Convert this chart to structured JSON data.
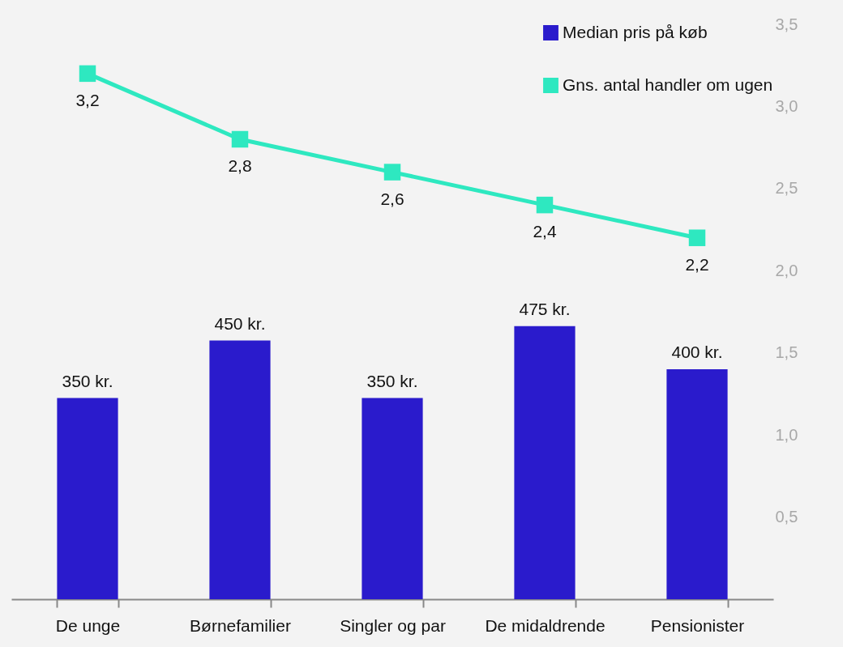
{
  "chart_data": {
    "type": "bar",
    "categories": [
      "De unge",
      "Børnefamilier",
      "Singler og par",
      "De midaldrende",
      "Pensionister"
    ],
    "ylim": [
      0,
      1000
    ],
    "y2lim": [
      0,
      3.5
    ],
    "y2ticks": [
      {
        "value": 0.5,
        "label": "0,5"
      },
      {
        "value": 1,
        "label": "1,0"
      },
      {
        "value": 1.5,
        "label": "1,5"
      },
      {
        "value": 2,
        "label": "2,0"
      },
      {
        "value": 2.5,
        "label": "2,5"
      },
      {
        "value": 3,
        "label": "3,0"
      },
      {
        "value": 3.5,
        "label": "3,5"
      }
    ],
    "series": [
      {
        "name": "Median pris på køb",
        "color": "#2a1bcc",
        "values": [
          350,
          450,
          350,
          475,
          400
        ],
        "value_labels": [
          "350 kr.",
          "450 kr.",
          "350 kr.",
          "475 kr.",
          "400 kr."
        ]
      },
      {
        "name": "Gns. antal handler om ugen",
        "type": "line",
        "axis": "y2",
        "color": "#2ee8c0",
        "values": [
          3.2,
          2.8,
          2.6,
          2.4,
          2.2
        ],
        "value_labels": [
          "3,2",
          "2,8",
          "2,6",
          "2,4",
          "2,2"
        ]
      }
    ],
    "legend": "top right",
    "marker": "square",
    "line_style": "solid",
    "grid": false
  }
}
